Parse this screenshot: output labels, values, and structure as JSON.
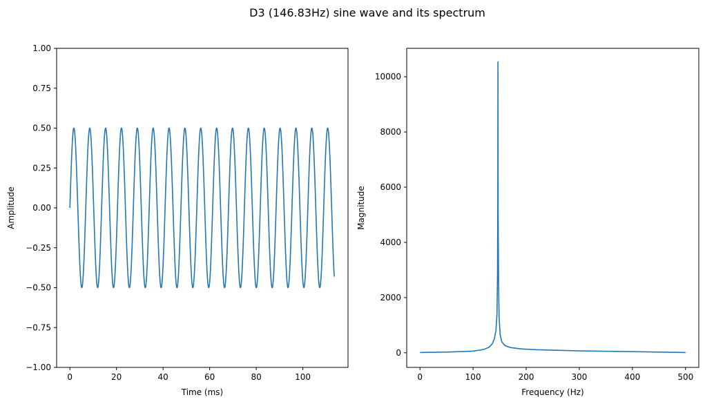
{
  "figure": {
    "title": "D3 (146.83Hz) sine wave and its spectrum"
  },
  "colors": {
    "line": "#1f77b4",
    "axes": "#000000",
    "background": "#ffffff"
  },
  "chart_data": [
    {
      "type": "line",
      "xlabel": "Time (ms)",
      "ylabel": "Amplitude",
      "xlim": [
        -5.7,
        119.4
      ],
      "ylim": [
        -1.0,
        1.0
      ],
      "xticks": [
        0,
        20,
        40,
        60,
        80,
        100
      ],
      "yticks": [
        -1.0,
        -0.75,
        -0.5,
        -0.25,
        0.0,
        0.25,
        0.5,
        0.75,
        1.0
      ],
      "ytick_labels": [
        "−1.00",
        "−0.75",
        "−0.50",
        "−0.25",
        "0.00",
        "0.25",
        "0.50",
        "0.75",
        "1.00"
      ],
      "grid": false,
      "series": [
        {
          "function": "sine",
          "amplitude": 0.5,
          "frequency_hz": 146.83,
          "x_start": 0,
          "x_end": 113.5
        }
      ]
    },
    {
      "type": "line",
      "xlabel": "Frequency (Hz)",
      "ylabel": "Magnitude",
      "xlim": [
        -25,
        525
      ],
      "ylim": [
        -530,
        11030
      ],
      "xticks": [
        0,
        100,
        200,
        300,
        400,
        500
      ],
      "yticks": [
        0,
        2000,
        4000,
        6000,
        8000,
        10000
      ],
      "grid": false,
      "series": [
        {
          "x": [
            0,
            50,
            100,
            120,
            130,
            136,
            140,
            143,
            145,
            146,
            146.5,
            146.83,
            147.2,
            148,
            149,
            151,
            154,
            160,
            170,
            190,
            220,
            300,
            400,
            500
          ],
          "y": [
            10,
            25,
            60,
            120,
            200,
            320,
            500,
            800,
            1400,
            2800,
            5500,
            10550,
            5000,
            2500,
            1300,
            650,
            400,
            260,
            190,
            140,
            110,
            70,
            40,
            10
          ]
        }
      ]
    }
  ]
}
